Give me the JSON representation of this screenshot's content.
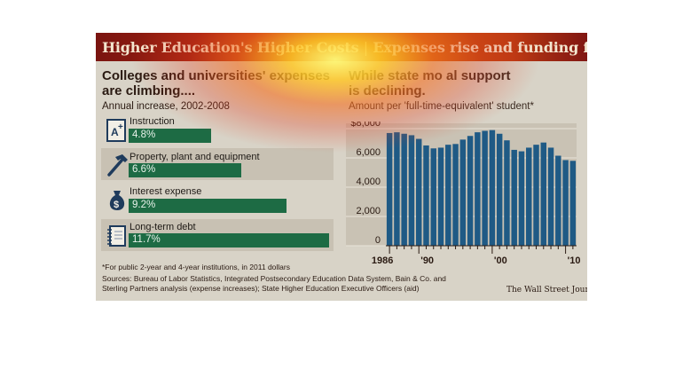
{
  "title": {
    "main": "Higher Education's Higher Costs",
    "separator": "|",
    "sub": "Expenses rise and funding falls"
  },
  "left": {
    "heading_line1": "Colleges and universities' expenses",
    "heading_line2": "are climbing....",
    "subheading": "Annual increase, 2002-2008",
    "items": [
      {
        "label": "Instruction",
        "value": 4.8,
        "value_label": "4.8%",
        "icon": "report-card-icon"
      },
      {
        "label": "Property, plant and equipment",
        "value": 6.6,
        "value_label": "6.6%",
        "icon": "hammer-icon"
      },
      {
        "label": "Interest expense",
        "value": 9.2,
        "value_label": "9.2%",
        "icon": "money-bag-icon"
      },
      {
        "label": "Long-term debt",
        "value": 11.7,
        "value_label": "11.7%",
        "icon": "notebook-icon"
      }
    ]
  },
  "right": {
    "heading_line1": "While state mo  al support",
    "heading_line2": "is declining.",
    "subheading": "Amount per 'full-time-equivalent' student*"
  },
  "footnote": "*For public 2-year and 4-year institutions, in 2011 dollars",
  "sources": "Sources: Bureau of Labor Statistics, Integrated Postsecondary Education Data System, Bain & Co. and Sterling Partners analysis (expense increases); State Higher Education Executive Officers (aid)",
  "credit": "The Wall Street Journal",
  "colors": {
    "bar_green": "#1d6b44",
    "bar_blue": "#1f5a85",
    "title_red": "#9a1d12"
  },
  "chart_data": {
    "type": "bar",
    "x": [
      1986,
      1987,
      1988,
      1989,
      1990,
      1991,
      1992,
      1993,
      1994,
      1995,
      1996,
      1997,
      1998,
      1999,
      2000,
      2001,
      2002,
      2003,
      2004,
      2005,
      2006,
      2007,
      2008,
      2009,
      2010,
      2011
    ],
    "values": [
      7700,
      7750,
      7650,
      7550,
      7300,
      6850,
      6650,
      6700,
      6900,
      6950,
      7250,
      7500,
      7750,
      7850,
      7900,
      7650,
      7200,
      6550,
      6450,
      6700,
      6900,
      7050,
      6700,
      6150,
      5850,
      5800
    ],
    "ylim": [
      0,
      8000
    ],
    "yticks": [
      0,
      2000,
      4000,
      6000,
      8000
    ],
    "ytick_labels": [
      "0",
      "2,000",
      "4,000",
      "6,000",
      "$8,000"
    ],
    "xtick_labels": [
      {
        "year": 1986,
        "label": "1986"
      },
      {
        "year": 1990,
        "label": "'90"
      },
      {
        "year": 2000,
        "label": "'00"
      },
      {
        "year": 2010,
        "label": "'10"
      }
    ],
    "grid": true
  }
}
